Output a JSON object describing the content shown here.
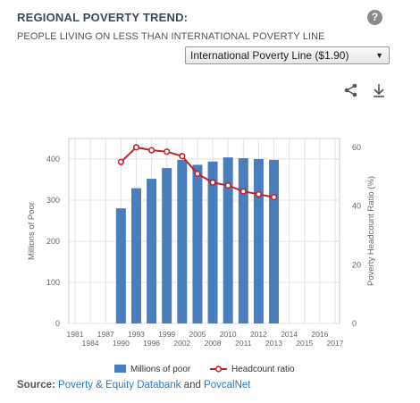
{
  "header": {
    "title": "REGIONAL POVERTY TREND:",
    "subtitle": "PEOPLE LIVING ON LESS THAN INTERNATIONAL POVERTY LINE",
    "help_glyph": "?"
  },
  "selector": {
    "value": "International Poverty Line ($1.90)"
  },
  "toolbar": {
    "share_icon": "share-icon",
    "download_icon": "download-icon"
  },
  "source": {
    "label": "Source:",
    "link1": "Poverty & Equity Databank",
    "and": "and",
    "link2": "PovcalNet"
  },
  "chart_data": {
    "type": "bar",
    "x_ticks": [
      "1981",
      "1984",
      "1987",
      "1990",
      "1993",
      "1996",
      "1999",
      "2002",
      "2005",
      "2008",
      "2010",
      "2011",
      "2012",
      "2013",
      "2014",
      "2015",
      "2016",
      "2017"
    ],
    "categories": [
      "1990",
      "1993",
      "1996",
      "1999",
      "2002",
      "2005",
      "2008",
      "2010",
      "2011",
      "2012",
      "2013"
    ],
    "series": [
      {
        "name": "Millions of poor",
        "type": "bar",
        "axis": "left",
        "color": "#4a7ebb",
        "values": [
          280,
          329,
          352,
          378,
          398,
          386,
          394,
          404,
          402,
          400,
          398
        ]
      },
      {
        "name": "Headcount ratio",
        "type": "line",
        "axis": "right",
        "color": "#c0232b",
        "values": [
          55,
          60,
          59,
          58.5,
          57,
          51,
          48,
          47,
          45,
          44,
          43
        ]
      }
    ],
    "ylabel_left": "Millions of Poor",
    "ylabel_right": "Poverty Headcount Ratio (%)",
    "yticks_left": [
      0,
      100,
      200,
      300,
      400
    ],
    "yticks_right": [
      0,
      20,
      40,
      60
    ],
    "ylim_left": [
      0,
      450
    ],
    "ylim_right": [
      0,
      63
    ],
    "grid": true,
    "legend_position": "bottom"
  }
}
